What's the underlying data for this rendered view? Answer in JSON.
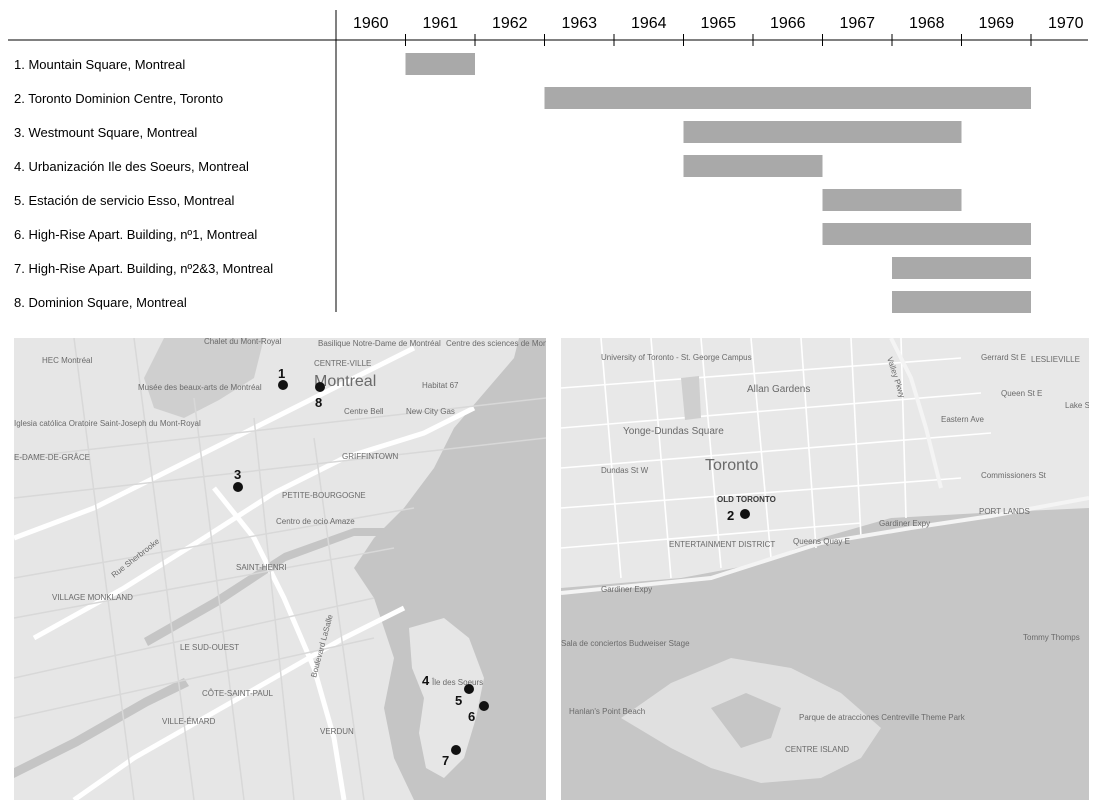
{
  "chart_data": {
    "type": "gantt",
    "years": [
      "1960",
      "1961",
      "1962",
      "1963",
      "1964",
      "1965",
      "1966",
      "1967",
      "1968",
      "1969",
      "1970"
    ],
    "tasks": [
      {
        "label": "1. Mountain Square, Montreal",
        "start": 1961,
        "end": 1962
      },
      {
        "label": "2. Toronto Dominion Centre, Toronto",
        "start": 1963,
        "end": 1970
      },
      {
        "label": "3. Westmount Square, Montreal",
        "start": 1965,
        "end": 1969
      },
      {
        "label": "4. Urbanización Ile des Soeurs, Montreal",
        "start": 1965,
        "end": 1967
      },
      {
        "label": "5. Estación de servicio Esso, Montreal",
        "start": 1967,
        "end": 1969
      },
      {
        "label": "6. High-Rise Apart. Building, nº1, Montreal",
        "start": 1967,
        "end": 1970
      },
      {
        "label": "7. High-Rise Apart. Building, nº2&3, Montreal",
        "start": 1968,
        "end": 1970
      },
      {
        "label": "8. Dominion Square, Montreal",
        "start": 1968,
        "end": 1970
      }
    ],
    "bar_color": "#a9a9a9"
  },
  "maps": {
    "montreal": {
      "labels": [
        "Chalet du Mont-Royal",
        "HEC Montréal",
        "Basilique Notre-Dame de Montréal",
        "Centre des sciences de Montréal",
        "CENTRE-VILLE",
        "Montreal",
        "Musée des beaux-arts de Montréal",
        "Habitat 67",
        "Centre Bell",
        "New City Gas",
        "Iglesia católica Oratoire Saint-Joseph du Mont-Royal",
        "E-DAME-DE-GRÂCE",
        "GRIFFINTOWN",
        "PETITE-BOURGOGNE",
        "Centro de ocio Amaze",
        "SAINT-HENRI",
        "Rue Sherbrooke",
        "VILLAGE MONKLAND",
        "LE SUD-OUEST",
        "CÔTE-SAINT-PAUL",
        "VILLE-ÉMARD",
        "VERDUN",
        "Île des Soeurs",
        "Boulevard LaSalle"
      ],
      "markers": [
        "1",
        "8",
        "3",
        "4",
        "5",
        "6",
        "7"
      ]
    },
    "toronto": {
      "labels": [
        "University of Toronto - St. George Campus",
        "Allan Gardens",
        "LESLIEVILLE",
        "Yonge-Dundas Square",
        "Toronto",
        "OLD TORONTO",
        "ENTERTAINMENT DISTRICT",
        "PORT LANDS",
        "Gardiner Expy",
        "Sala de conciertos Budweiser Stage",
        "Tommy Thomps",
        "Hanlan's Point Beach",
        "Parque de atracciones Centreville Theme Park",
        "CENTRE ISLAND",
        "Valley Pkwy",
        "Lake Sh",
        "Gerrard St E",
        "Queen St E",
        "Eastern Ave",
        "Commissioners St",
        "Dundas St W",
        "Queens Quay E",
        "Gardiner Expy"
      ],
      "markers": [
        "2"
      ]
    }
  }
}
